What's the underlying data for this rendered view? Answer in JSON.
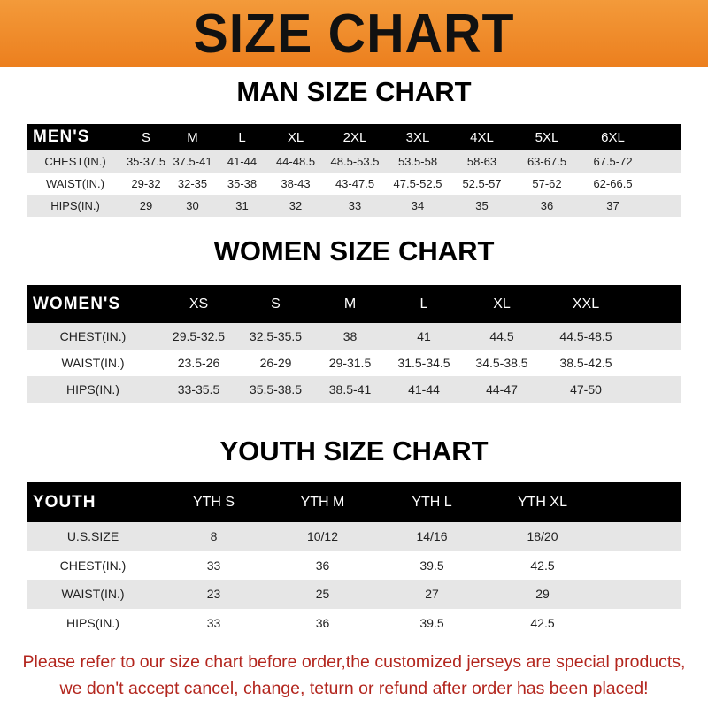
{
  "banner": {
    "title": "SIZE CHART"
  },
  "men": {
    "title": "MAN SIZE CHART",
    "header": [
      "MEN'S",
      "S",
      "M",
      "L",
      "XL",
      "2XL",
      "3XL",
      "4XL",
      "5XL",
      "6XL"
    ],
    "rows": [
      [
        "CHEST(IN.)",
        "35-37.5",
        "37.5-41",
        "41-44",
        "44-48.5",
        "48.5-53.5",
        "53.5-58",
        "58-63",
        "63-67.5",
        "67.5-72"
      ],
      [
        "WAIST(IN.)",
        "29-32",
        "32-35",
        "35-38",
        "38-43",
        "43-47.5",
        "47.5-52.5",
        "52.5-57",
        "57-62",
        "62-66.5"
      ],
      [
        "HIPS(IN.)",
        "29",
        "30",
        "31",
        "32",
        "33",
        "34",
        "35",
        "36",
        "37"
      ]
    ]
  },
  "women": {
    "title": "WOMEN SIZE CHART",
    "header": [
      "WOMEN'S",
      "XS",
      "S",
      "M",
      "L",
      "XL",
      "XXL"
    ],
    "rows": [
      [
        "CHEST(IN.)",
        "29.5-32.5",
        "32.5-35.5",
        "38",
        "41",
        "44.5",
        "44.5-48.5"
      ],
      [
        "WAIST(IN.)",
        "23.5-26",
        "26-29",
        "29-31.5",
        "31.5-34.5",
        "34.5-38.5",
        "38.5-42.5"
      ],
      [
        "HIPS(IN.)",
        "33-35.5",
        "35.5-38.5",
        "38.5-41",
        "41-44",
        "44-47",
        "47-50"
      ]
    ]
  },
  "youth": {
    "title": "YOUTH SIZE CHART",
    "header": [
      "YOUTH",
      "YTH S",
      "YTH M",
      "YTH L",
      "YTH XL"
    ],
    "rows": [
      [
        "U.S.SIZE",
        "8",
        "10/12",
        "14/16",
        "18/20"
      ],
      [
        "CHEST(IN.)",
        "33",
        "36",
        "39.5",
        "42.5"
      ],
      [
        "WAIST(IN.)",
        "23",
        "25",
        "27",
        "29"
      ],
      [
        "HIPS(IN.)",
        "33",
        "36",
        "39.5",
        "42.5"
      ]
    ]
  },
  "note": {
    "line1": "Please refer to our size chart before order,the customized jerseys are special products,",
    "line2": "we don't accept cancel, change, teturn or refund after order has been placed!"
  },
  "colors": {
    "banner": "#ec7f1e",
    "note": "#b3261e",
    "header": "#000000",
    "stripe": "#e6e6e6"
  }
}
